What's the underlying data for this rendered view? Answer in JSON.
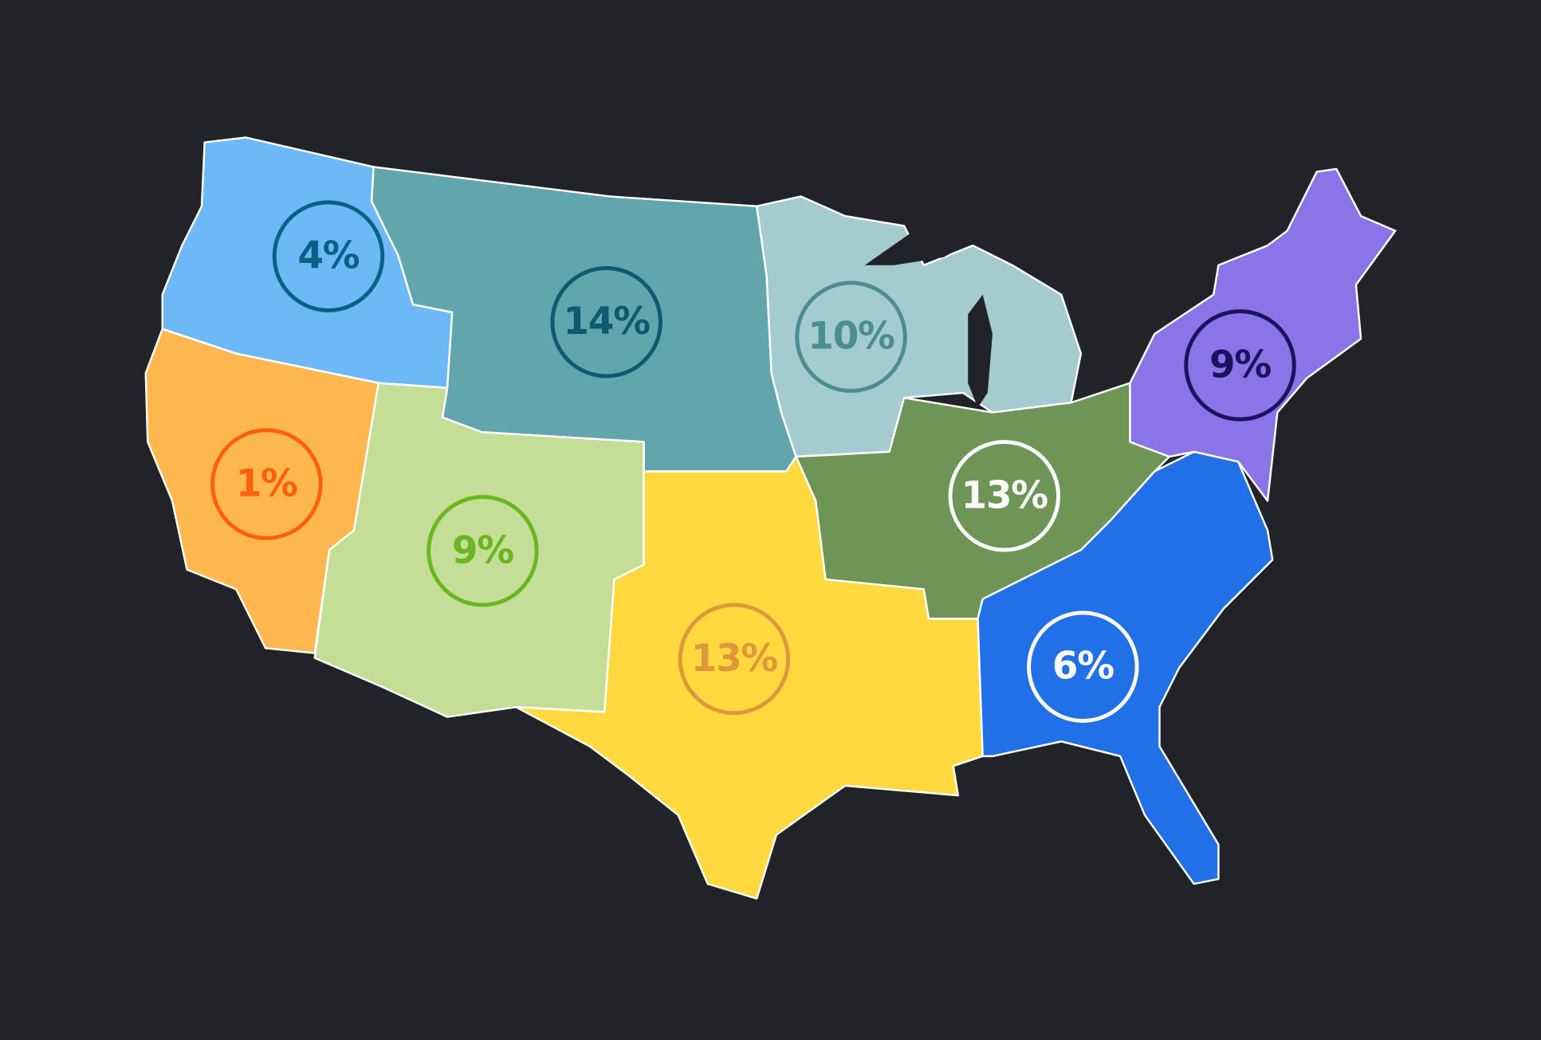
{
  "regions": [
    {
      "value": 4,
      "label": "4%",
      "color": "#6db8f7",
      "accent": "#0e5f86"
    },
    {
      "value": 14,
      "label": "14%",
      "color": "#62a5ad",
      "accent": "#0e5a70"
    },
    {
      "value": 1,
      "label": "1%",
      "color": "#ffb74f",
      "accent": "#ff6010"
    },
    {
      "value": 9,
      "label": "9%",
      "color": "#c4de98",
      "accent": "#6bb521"
    },
    {
      "value": 10,
      "label": "10%",
      "color": "#a3cbd0",
      "accent": "#4a8e94"
    },
    {
      "value": 13,
      "label": "13%",
      "color": "#6e9456",
      "accent": "#ffffff"
    },
    {
      "value": 13,
      "label": "13%",
      "color": "#ffd93e",
      "accent": "#e0963a"
    },
    {
      "value": 6,
      "label": "6%",
      "color": "#2270e8",
      "accent": "#ffffff"
    },
    {
      "value": 9,
      "label": "9%",
      "color": "#8b73e8",
      "accent": "#1b1260"
    }
  ]
}
